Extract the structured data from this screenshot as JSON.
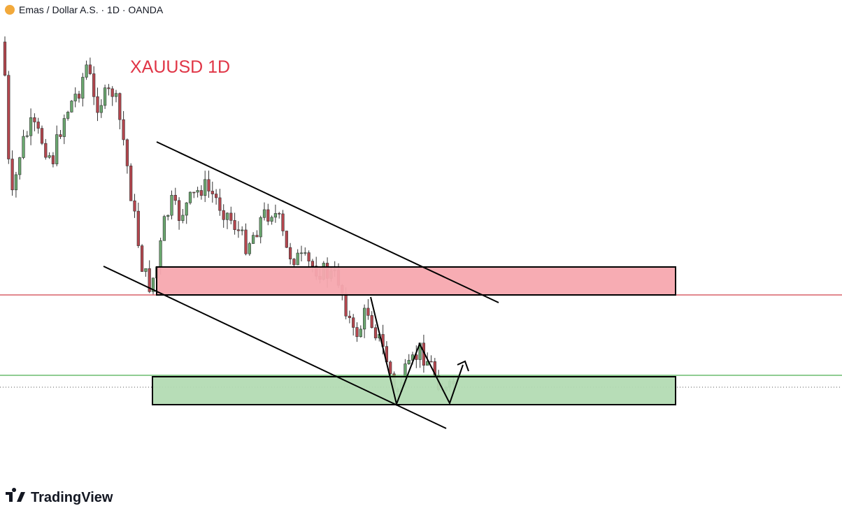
{
  "header": {
    "symbol": "Emas / Dollar A.S. · 1D · OANDA"
  },
  "annotation": "XAUUSD 1D",
  "brand": "TradingView"
}
